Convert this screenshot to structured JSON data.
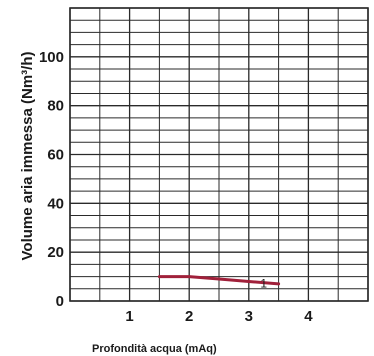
{
  "chart_data": {
    "type": "line",
    "title": "",
    "xlabel": "Profondità acqua (mAq)",
    "ylabel": "Volume aria immessa (Nm³/h)",
    "xlim": [
      0,
      5
    ],
    "ylim": [
      0,
      120
    ],
    "x_ticks": [
      "1",
      "2",
      "3",
      "4"
    ],
    "x_tick_values": [
      1,
      2,
      3,
      4
    ],
    "y_ticks": [
      "0",
      "20",
      "40",
      "60",
      "80",
      "100"
    ],
    "y_tick_values": [
      0,
      20,
      40,
      60,
      80,
      100
    ],
    "grid": true,
    "series": [
      {
        "color": "#a0203a",
        "x": [
          1.5,
          2.0,
          2.5,
          3.0,
          3.5
        ],
        "y": [
          10.0,
          10.0,
          9.0,
          8.0,
          7.0
        ]
      }
    ],
    "annotations": [
      {
        "text": "1",
        "x": 3.25,
        "y": 5.5
      }
    ]
  }
}
